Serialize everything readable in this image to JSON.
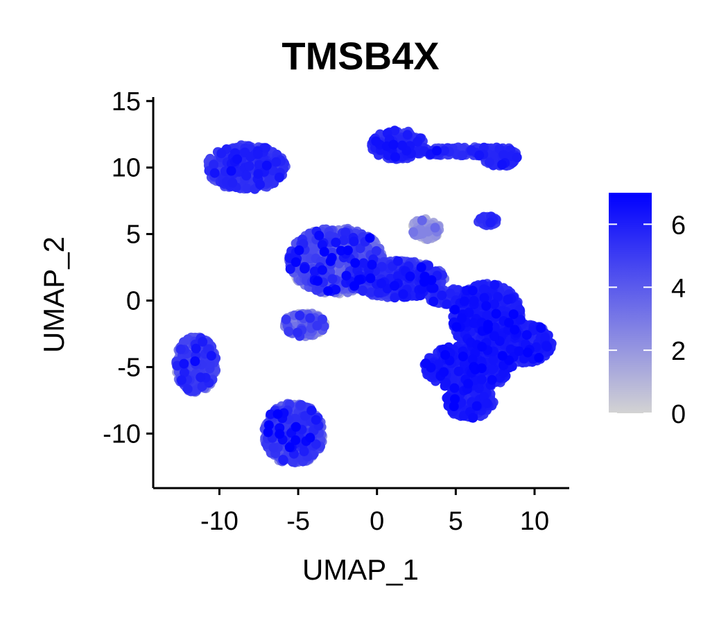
{
  "chart_data": {
    "type": "scatter",
    "title": "TMSB4X",
    "xlabel": "UMAP_1",
    "ylabel": "UMAP_2",
    "xlim": [
      -14.2,
      12.2
    ],
    "ylim": [
      -14.1,
      15.3
    ],
    "x_ticks": [
      -10,
      -5,
      0,
      5,
      10
    ],
    "x_tick_labels": [
      "-10",
      "-5",
      "0",
      "5",
      "10"
    ],
    "y_ticks": [
      -10,
      -5,
      0,
      5,
      10,
      15
    ],
    "y_tick_labels": [
      "-10",
      "-5",
      "0",
      "5",
      "10",
      "15"
    ],
    "grid": false,
    "legend": {
      "type": "colorbar",
      "placement": "right",
      "min": 0,
      "max": 7,
      "ticks": [
        0,
        2,
        4,
        6
      ],
      "tick_labels": [
        "0",
        "2",
        "4",
        "6"
      ],
      "color_low": "#d3d3d3",
      "color_high": "#0000ff"
    },
    "clusters": [
      {
        "cx": -8.3,
        "cy": 10.0,
        "rx": 2.5,
        "ry": 1.7,
        "mean_expr": 4.7,
        "spread": 0.8
      },
      {
        "cx": 1.3,
        "cy": 11.7,
        "rx": 1.7,
        "ry": 1.1,
        "mean_expr": 5.2,
        "spread": 0.6
      },
      {
        "cx": 5.3,
        "cy": 11.2,
        "rx": 3.3,
        "ry": 0.35,
        "mean_expr": 4.9,
        "spread": 0.6
      },
      {
        "cx": 7.8,
        "cy": 10.8,
        "rx": 1.1,
        "ry": 0.8,
        "mean_expr": 5.0,
        "spread": 0.6
      },
      {
        "cx": 7.0,
        "cy": 6.0,
        "rx": 0.6,
        "ry": 0.35,
        "mean_expr": 5.0,
        "spread": 0.5
      },
      {
        "cx": -2.6,
        "cy": 3.0,
        "rx": 3.0,
        "ry": 2.5,
        "mean_expr": 3.0,
        "spread": 1.8
      },
      {
        "cx": 1.3,
        "cy": 1.6,
        "rx": 3.0,
        "ry": 1.4,
        "mean_expr": 4.8,
        "spread": 1.0
      },
      {
        "cx": 3.1,
        "cy": 5.4,
        "rx": 0.9,
        "ry": 0.8,
        "mean_expr": 1.2,
        "spread": 1.0
      },
      {
        "cx": -4.6,
        "cy": -1.8,
        "rx": 1.3,
        "ry": 0.9,
        "mean_expr": 2.2,
        "spread": 1.4
      },
      {
        "cx": 4.6,
        "cy": 0.3,
        "rx": 1.4,
        "ry": 0.6,
        "mean_expr": 5.0,
        "spread": 0.7
      },
      {
        "cx": -11.5,
        "cy": -4.8,
        "rx": 1.3,
        "ry": 2.1,
        "mean_expr": 3.9,
        "spread": 1.1
      },
      {
        "cx": -5.3,
        "cy": -10.0,
        "rx": 1.9,
        "ry": 2.3,
        "mean_expr": 3.9,
        "spread": 1.3
      },
      {
        "cx": 7.0,
        "cy": -1.3,
        "rx": 2.2,
        "ry": 2.6,
        "mean_expr": 5.6,
        "spread": 0.6
      },
      {
        "cx": 9.3,
        "cy": -3.2,
        "rx": 1.8,
        "ry": 1.5,
        "mean_expr": 5.5,
        "spread": 0.6
      },
      {
        "cx": 5.8,
        "cy": -5.0,
        "rx": 2.8,
        "ry": 1.7,
        "mean_expr": 5.7,
        "spread": 0.5
      },
      {
        "cx": 5.9,
        "cy": -7.5,
        "rx": 1.5,
        "ry": 1.4,
        "mean_expr": 5.6,
        "spread": 0.5
      }
    ]
  }
}
